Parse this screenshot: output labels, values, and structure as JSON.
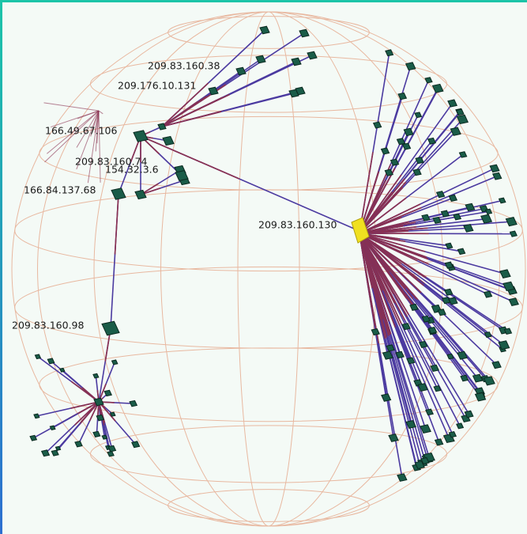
{
  "nodes": [
    {
      "label": "209.83.160.38"
    },
    {
      "label": "209.176.10.131"
    },
    {
      "label": "166.49.67.106"
    },
    {
      "label": "209.83.160.74"
    },
    {
      "label": "154.32.3.6"
    },
    {
      "label": "166.84.137.68"
    },
    {
      "label": "209.83.160.130"
    },
    {
      "label": "209.83.160.98"
    }
  ]
}
